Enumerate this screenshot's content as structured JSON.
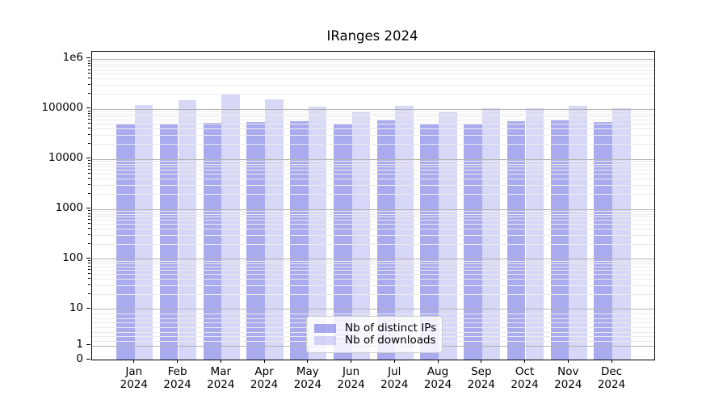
{
  "chart_data": {
    "type": "bar",
    "title": "IRanges 2024",
    "x_tick_year": "2024",
    "categories": [
      "Jan",
      "Feb",
      "Mar",
      "Apr",
      "May",
      "Jun",
      "Jul",
      "Aug",
      "Sep",
      "Oct",
      "Nov",
      "Dec"
    ],
    "series": [
      {
        "name": "Nb of distinct IPs",
        "color": "rgba(124,124,229,0.65)",
        "color_apparent_hex": "#aaaaee",
        "values": [
          50000,
          50000,
          53500,
          54000,
          56000,
          50000,
          60000,
          50500,
          50500,
          56000,
          59000,
          54000
        ]
      },
      {
        "name": "Nb of downloads",
        "color": "rgba(124,124,229,0.30)",
        "color_apparent_hex": "#d8d8f7",
        "values": [
          120000,
          148000,
          195000,
          155000,
          111000,
          88000,
          113000,
          90000,
          101000,
          102000,
          114000,
          104000
        ]
      }
    ],
    "y_axis": {
      "scale": "symlog",
      "tick_labels": [
        "1e6",
        "100000",
        "10000",
        "1000",
        "100",
        "10",
        "1",
        "0"
      ],
      "tick_values": [
        1000000,
        100000,
        10000,
        1000,
        100,
        10,
        1,
        0
      ],
      "ylim_bottom": 0
    },
    "x_axis": {
      "tick_label_line2": "2024"
    },
    "grid": {
      "major_color": "#b3b3b3",
      "minor_color": "#ebebeb",
      "vertical": false
    },
    "legend": {
      "position": "lower center",
      "border_color": "#cccccc",
      "background": "rgba(255,255,255,0.8)"
    },
    "spine_color": "#000000",
    "background": "#ffffff"
  }
}
